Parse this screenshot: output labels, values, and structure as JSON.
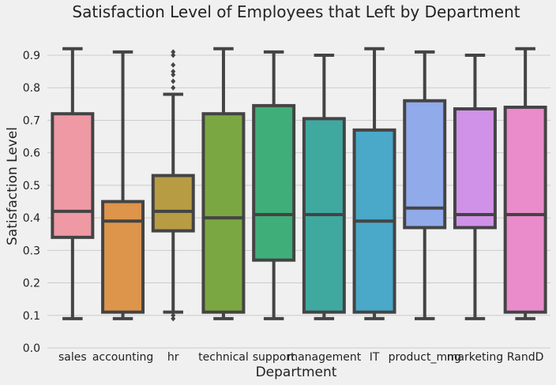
{
  "chart_data": {
    "type": "box",
    "title": "Satisfaction Level of Employees that Left by Department",
    "xlabel": "Department",
    "ylabel": "Satisfaction Level",
    "ylim": [
      0.0,
      0.96
    ],
    "yticks": [
      "0.0",
      "0.1",
      "0.2",
      "0.3",
      "0.4",
      "0.5",
      "0.6",
      "0.7",
      "0.8",
      "0.9"
    ],
    "grid": true,
    "categories": [
      "sales",
      "accounting",
      "hr",
      "technical",
      "support",
      "management",
      "IT",
      "product_mng",
      "marketing",
      "RandD"
    ],
    "boxes": [
      {
        "category": "sales",
        "min": 0.09,
        "q1": 0.34,
        "median": 0.42,
        "q3": 0.72,
        "max": 0.92,
        "color": "#ee99a4",
        "outliers": []
      },
      {
        "category": "accounting",
        "min": 0.09,
        "q1": 0.11,
        "median": 0.39,
        "q3": 0.45,
        "max": 0.91,
        "color": "#dd944b",
        "outliers": []
      },
      {
        "category": "hr",
        "min": 0.11,
        "q1": 0.36,
        "median": 0.42,
        "q3": 0.53,
        "max": 0.78,
        "color": "#b89c43",
        "outliers": [
          0.09,
          0.1,
          0.8,
          0.82,
          0.84,
          0.85,
          0.87,
          0.9,
          0.91
        ]
      },
      {
        "category": "technical",
        "min": 0.09,
        "q1": 0.11,
        "median": 0.4,
        "q3": 0.72,
        "max": 0.92,
        "color": "#7ba743",
        "outliers": []
      },
      {
        "category": "support",
        "min": 0.09,
        "q1": 0.27,
        "median": 0.41,
        "q3": 0.745,
        "max": 0.91,
        "color": "#3fae78",
        "outliers": []
      },
      {
        "category": "management",
        "min": 0.09,
        "q1": 0.11,
        "median": 0.41,
        "q3": 0.705,
        "max": 0.9,
        "color": "#3fa9a0",
        "outliers": []
      },
      {
        "category": "IT",
        "min": 0.09,
        "q1": 0.11,
        "median": 0.39,
        "q3": 0.67,
        "max": 0.92,
        "color": "#4aa8c8",
        "outliers": []
      },
      {
        "category": "product_mng",
        "min": 0.09,
        "q1": 0.37,
        "median": 0.43,
        "q3": 0.76,
        "max": 0.91,
        "color": "#91aaea",
        "outliers": []
      },
      {
        "category": "marketing",
        "min": 0.09,
        "q1": 0.37,
        "median": 0.41,
        "q3": 0.735,
        "max": 0.9,
        "color": "#d092e8",
        "outliers": []
      },
      {
        "category": "RandD",
        "min": 0.09,
        "q1": 0.11,
        "median": 0.41,
        "q3": 0.74,
        "max": 0.92,
        "color": "#ea8bcb",
        "outliers": []
      }
    ]
  }
}
